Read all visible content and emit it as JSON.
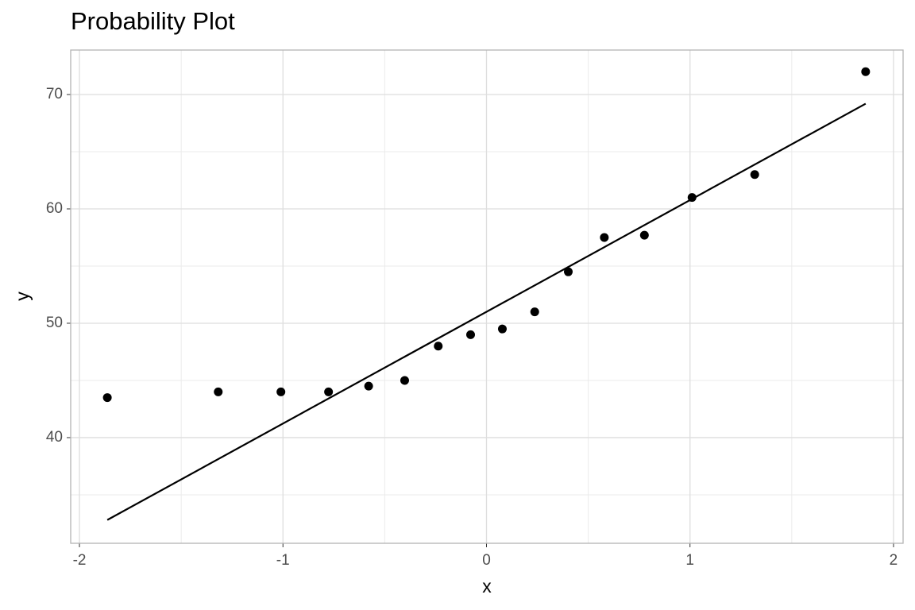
{
  "chart_data": {
    "type": "scatter",
    "title": "Probability Plot",
    "xlabel": "x",
    "ylabel": "y",
    "x": [
      -1.863,
      -1.318,
      -1.01,
      -0.776,
      -0.579,
      -0.402,
      -0.237,
      -0.078,
      0.078,
      0.237,
      0.402,
      0.579,
      0.776,
      1.01,
      1.318,
      1.863
    ],
    "values": [
      43.5,
      44,
      44,
      44,
      44.5,
      45,
      48,
      49,
      49.5,
      51,
      54.5,
      57.5,
      57.7,
      61,
      63,
      72
    ],
    "color": "#000000",
    "fit_line": {
      "x": [
        -1.863,
        1.863
      ],
      "values": [
        32.8,
        69.2
      ],
      "color": "#000000"
    },
    "xlim": [
      -2.043,
      2.047
    ],
    "ylim": [
      30.76,
      73.89
    ],
    "xticks": [
      -2,
      -1,
      0,
      1,
      2
    ],
    "yticks": [
      40,
      50,
      60,
      70
    ],
    "x_minor_ticks": [
      -1.5,
      -0.5,
      0.5,
      1.5
    ],
    "y_minor_ticks": [
      35,
      45,
      55,
      65
    ],
    "grid": true
  }
}
